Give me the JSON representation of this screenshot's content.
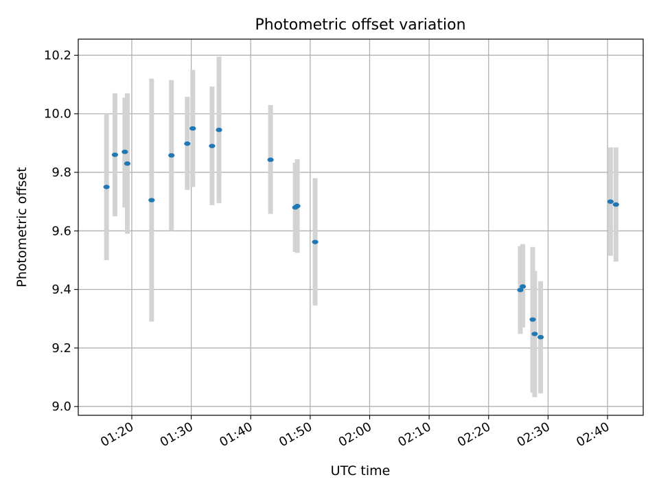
{
  "chart_data": {
    "type": "scatter",
    "title": "Photometric offset variation",
    "xlabel": "UTC time",
    "ylabel": "Photometric offset",
    "x_unit": "UTC time (HH:MM)",
    "xlim": [
      "01:11:00",
      "02:46:00"
    ],
    "ylim": [
      8.97,
      10.255
    ],
    "grid": true,
    "x_ticks": [
      "01:20",
      "01:30",
      "01:40",
      "01:50",
      "02:00",
      "02:10",
      "02:20",
      "02:30",
      "02:40"
    ],
    "y_ticks": [
      "9.0",
      "9.2",
      "9.4",
      "9.6",
      "9.8",
      "10.0",
      "10.2"
    ],
    "points": [
      {
        "t": "01:15:45",
        "y": 9.75,
        "lo": 9.5,
        "hi": 10.0
      },
      {
        "t": "01:17:10",
        "y": 9.86,
        "lo": 9.65,
        "hi": 10.07
      },
      {
        "t": "01:18:50",
        "y": 9.87,
        "lo": 9.68,
        "hi": 10.055
      },
      {
        "t": "01:19:15",
        "y": 9.83,
        "lo": 9.59,
        "hi": 10.07
      },
      {
        "t": "01:23:20",
        "y": 9.705,
        "lo": 9.29,
        "hi": 10.12
      },
      {
        "t": "01:26:40",
        "y": 9.858,
        "lo": 9.6,
        "hi": 10.115
      },
      {
        "t": "01:29:20",
        "y": 9.898,
        "lo": 9.74,
        "hi": 10.058
      },
      {
        "t": "01:30:15",
        "y": 9.95,
        "lo": 9.75,
        "hi": 10.15
      },
      {
        "t": "01:33:30",
        "y": 9.89,
        "lo": 9.688,
        "hi": 10.093
      },
      {
        "t": "01:34:40",
        "y": 9.945,
        "lo": 9.695,
        "hi": 10.195
      },
      {
        "t": "01:43:20",
        "y": 9.843,
        "lo": 9.658,
        "hi": 10.03
      },
      {
        "t": "01:47:30",
        "y": 9.68,
        "lo": 9.528,
        "hi": 9.833
      },
      {
        "t": "01:47:50",
        "y": 9.685,
        "lo": 9.525,
        "hi": 9.845
      },
      {
        "t": "01:50:50",
        "y": 9.562,
        "lo": 9.345,
        "hi": 9.78
      },
      {
        "t": "02:25:20",
        "y": 9.398,
        "lo": 9.248,
        "hi": 9.548
      },
      {
        "t": "02:25:45",
        "y": 9.41,
        "lo": 9.27,
        "hi": 9.555
      },
      {
        "t": "02:27:25",
        "y": 9.297,
        "lo": 9.048,
        "hi": 9.545
      },
      {
        "t": "02:27:45",
        "y": 9.248,
        "lo": 9.032,
        "hi": 9.463
      },
      {
        "t": "02:28:45",
        "y": 9.237,
        "lo": 9.045,
        "hi": 9.428
      },
      {
        "t": "02:40:30",
        "y": 9.7,
        "lo": 9.515,
        "hi": 9.885
      },
      {
        "t": "02:41:25",
        "y": 9.69,
        "lo": 9.495,
        "hi": 9.885
      }
    ]
  },
  "colors": {
    "marker": "#1f77b4",
    "errorbar": "#d3d3d3",
    "grid": "#b0b0b0",
    "axes": "#000000"
  }
}
